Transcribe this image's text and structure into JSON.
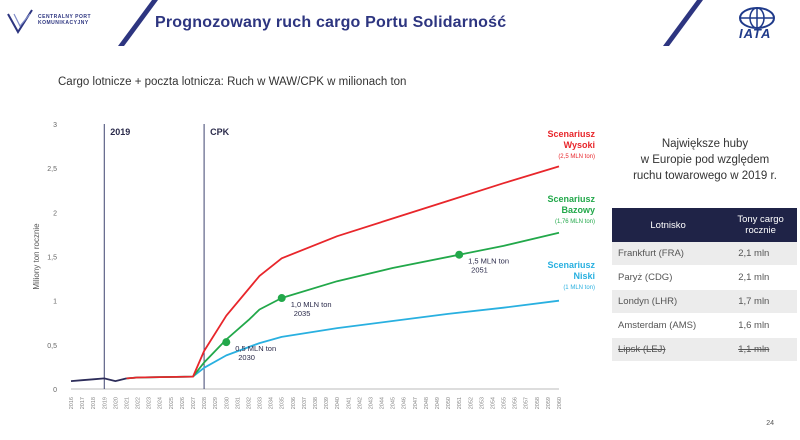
{
  "header": {
    "title": "Prognozowany ruch cargo Portu Solidarność",
    "logo_left_line1": "CENTRALNY PORT",
    "logo_left_line2": "KOMUNIKACYJNY",
    "logo_right": "IATA"
  },
  "chart_data": {
    "type": "line",
    "title": "Cargo lotnicze + poczta lotnicza: Ruch w WAW/CPK w milionach ton",
    "ylabel": "Miliony ton rocznie",
    "xlabel": "",
    "ylim": [
      0,
      3
    ],
    "xlim": [
      2016,
      2060
    ],
    "y_ticks": [
      "0",
      "0,5",
      "1",
      "1,5",
      "2",
      "2,5",
      "3"
    ],
    "x_ticks": [
      "2016",
      "2017",
      "2018",
      "2019",
      "2020",
      "2021",
      "2022",
      "2023",
      "2024",
      "2025",
      "2026",
      "2027",
      "2028",
      "2029",
      "2030",
      "2031",
      "2032",
      "2033",
      "2034",
      "2035",
      "2036",
      "2037",
      "2038",
      "2039",
      "2040",
      "2041",
      "2042",
      "2043",
      "2044",
      "2045",
      "2046",
      "2047",
      "2048",
      "2049",
      "2050",
      "2051",
      "2052",
      "2053",
      "2054",
      "2055",
      "2056",
      "2057",
      "2058",
      "2059",
      "2060"
    ],
    "grid": false,
    "vlines": [
      {
        "x": 2019,
        "label": "2019"
      },
      {
        "x": 2028,
        "label": "CPK"
      }
    ],
    "historical": {
      "color": "#2d2d5a",
      "points": [
        [
          2016,
          0.09
        ],
        [
          2017,
          0.1
        ],
        [
          2018,
          0.11
        ],
        [
          2019,
          0.12
        ],
        [
          2020,
          0.09
        ],
        [
          2021,
          0.12
        ]
      ]
    },
    "series": [
      {
        "name": "Scenariusz Wysoki",
        "sublabel": "(2,5 MLN ton)",
        "color": "#e8262b",
        "points": [
          [
            2021,
            0.12
          ],
          [
            2022,
            0.13
          ],
          [
            2024,
            0.135
          ],
          [
            2027,
            0.14
          ],
          [
            2028,
            0.43
          ],
          [
            2030,
            0.83
          ],
          [
            2033,
            1.28
          ],
          [
            2035,
            1.48
          ],
          [
            2040,
            1.73
          ],
          [
            2045,
            1.93
          ],
          [
            2050,
            2.13
          ],
          [
            2055,
            2.33
          ],
          [
            2060,
            2.52
          ]
        ]
      },
      {
        "name": "Scenariusz Bazowy",
        "sublabel": "(1,76 MLN ton)",
        "color": "#22a84a",
        "points": [
          [
            2021,
            0.12
          ],
          [
            2022,
            0.13
          ],
          [
            2024,
            0.135
          ],
          [
            2027,
            0.14
          ],
          [
            2028,
            0.3
          ],
          [
            2030,
            0.56
          ],
          [
            2032,
            0.78
          ],
          [
            2033,
            0.9
          ],
          [
            2035,
            1.03
          ],
          [
            2040,
            1.22
          ],
          [
            2045,
            1.37
          ],
          [
            2051,
            1.52
          ],
          [
            2055,
            1.62
          ],
          [
            2060,
            1.77
          ]
        ]
      },
      {
        "name": "Scenariusz Niski",
        "sublabel": "(1 MLN ton)",
        "color": "#29b0e0",
        "points": [
          [
            2021,
            0.12
          ],
          [
            2022,
            0.13
          ],
          [
            2024,
            0.135
          ],
          [
            2027,
            0.14
          ],
          [
            2028,
            0.24
          ],
          [
            2030,
            0.38
          ],
          [
            2033,
            0.52
          ],
          [
            2035,
            0.59
          ],
          [
            2040,
            0.69
          ],
          [
            2045,
            0.77
          ],
          [
            2050,
            0.85
          ],
          [
            2055,
            0.92
          ],
          [
            2060,
            1.0
          ]
        ]
      }
    ],
    "milestones": [
      {
        "x": 2030,
        "y": 0.53,
        "line1": "0,5 MLN ton",
        "line2": "2030"
      },
      {
        "x": 2035,
        "y": 1.03,
        "line1": "1,0 MLN ton",
        "line2": "2035"
      },
      {
        "x": 2051,
        "y": 1.52,
        "line1": "1,5 MLN ton",
        "line2": "2051"
      }
    ]
  },
  "side_panel": {
    "title_line1": "Największe huby",
    "title_line2": "w Europie pod względem",
    "title_line3": "ruchu towarowego w 2019 r.",
    "col1": "Lotnisko",
    "col2_line1": "Tony cargo",
    "col2_line2": "rocznie",
    "rows": [
      {
        "airport": "Frankfurt (FRA)",
        "tons": "2,1 mln",
        "struck": false
      },
      {
        "airport": "Paryż (CDG)",
        "tons": "2,1 mln",
        "struck": false
      },
      {
        "airport": "Londyn (LHR)",
        "tons": "1,7 mln",
        "struck": false
      },
      {
        "airport": "Amsterdam (AMS)",
        "tons": "1,6 mln",
        "struck": false
      },
      {
        "airport": "Lipsk (LEJ)",
        "tons": "1,1 mln",
        "struck": true
      }
    ]
  },
  "page_number": "24",
  "colors": {
    "navy": "#2d3580",
    "table_header": "#1f2347",
    "iata_blue": "#1f3a8a"
  }
}
